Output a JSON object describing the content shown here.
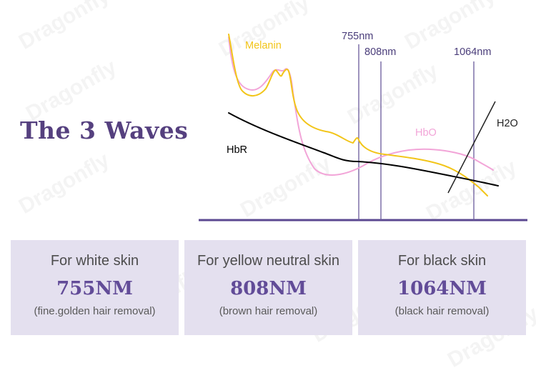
{
  "watermark": "Dragonfly",
  "title": "The 3 Waves",
  "chart": {
    "wavelengths": [
      {
        "label": "755nm",
        "nm": 755
      },
      {
        "label": "808nm",
        "nm": 808
      },
      {
        "label": "1064nm",
        "nm": 1064
      }
    ],
    "series": {
      "melanin": {
        "label": "Melanin",
        "color": "#f2c519"
      },
      "hbo": {
        "label": "HbO",
        "color": "#f2a5d8"
      },
      "hbr": {
        "label": "HbR",
        "color": "#000000"
      },
      "h2o": {
        "label": "H2O",
        "color": "#222222"
      }
    },
    "axis_color": "#5b4891"
  },
  "cards": [
    {
      "subject": "For white skin",
      "value": "755NM",
      "note": "(fine.golden hair removal)"
    },
    {
      "subject": "For yellow neutral skin",
      "value": "808NM",
      "note": "(brown hair removal)"
    },
    {
      "subject": "For black skin",
      "value": "1064NM",
      "note": "(black hair removal)"
    }
  ]
}
